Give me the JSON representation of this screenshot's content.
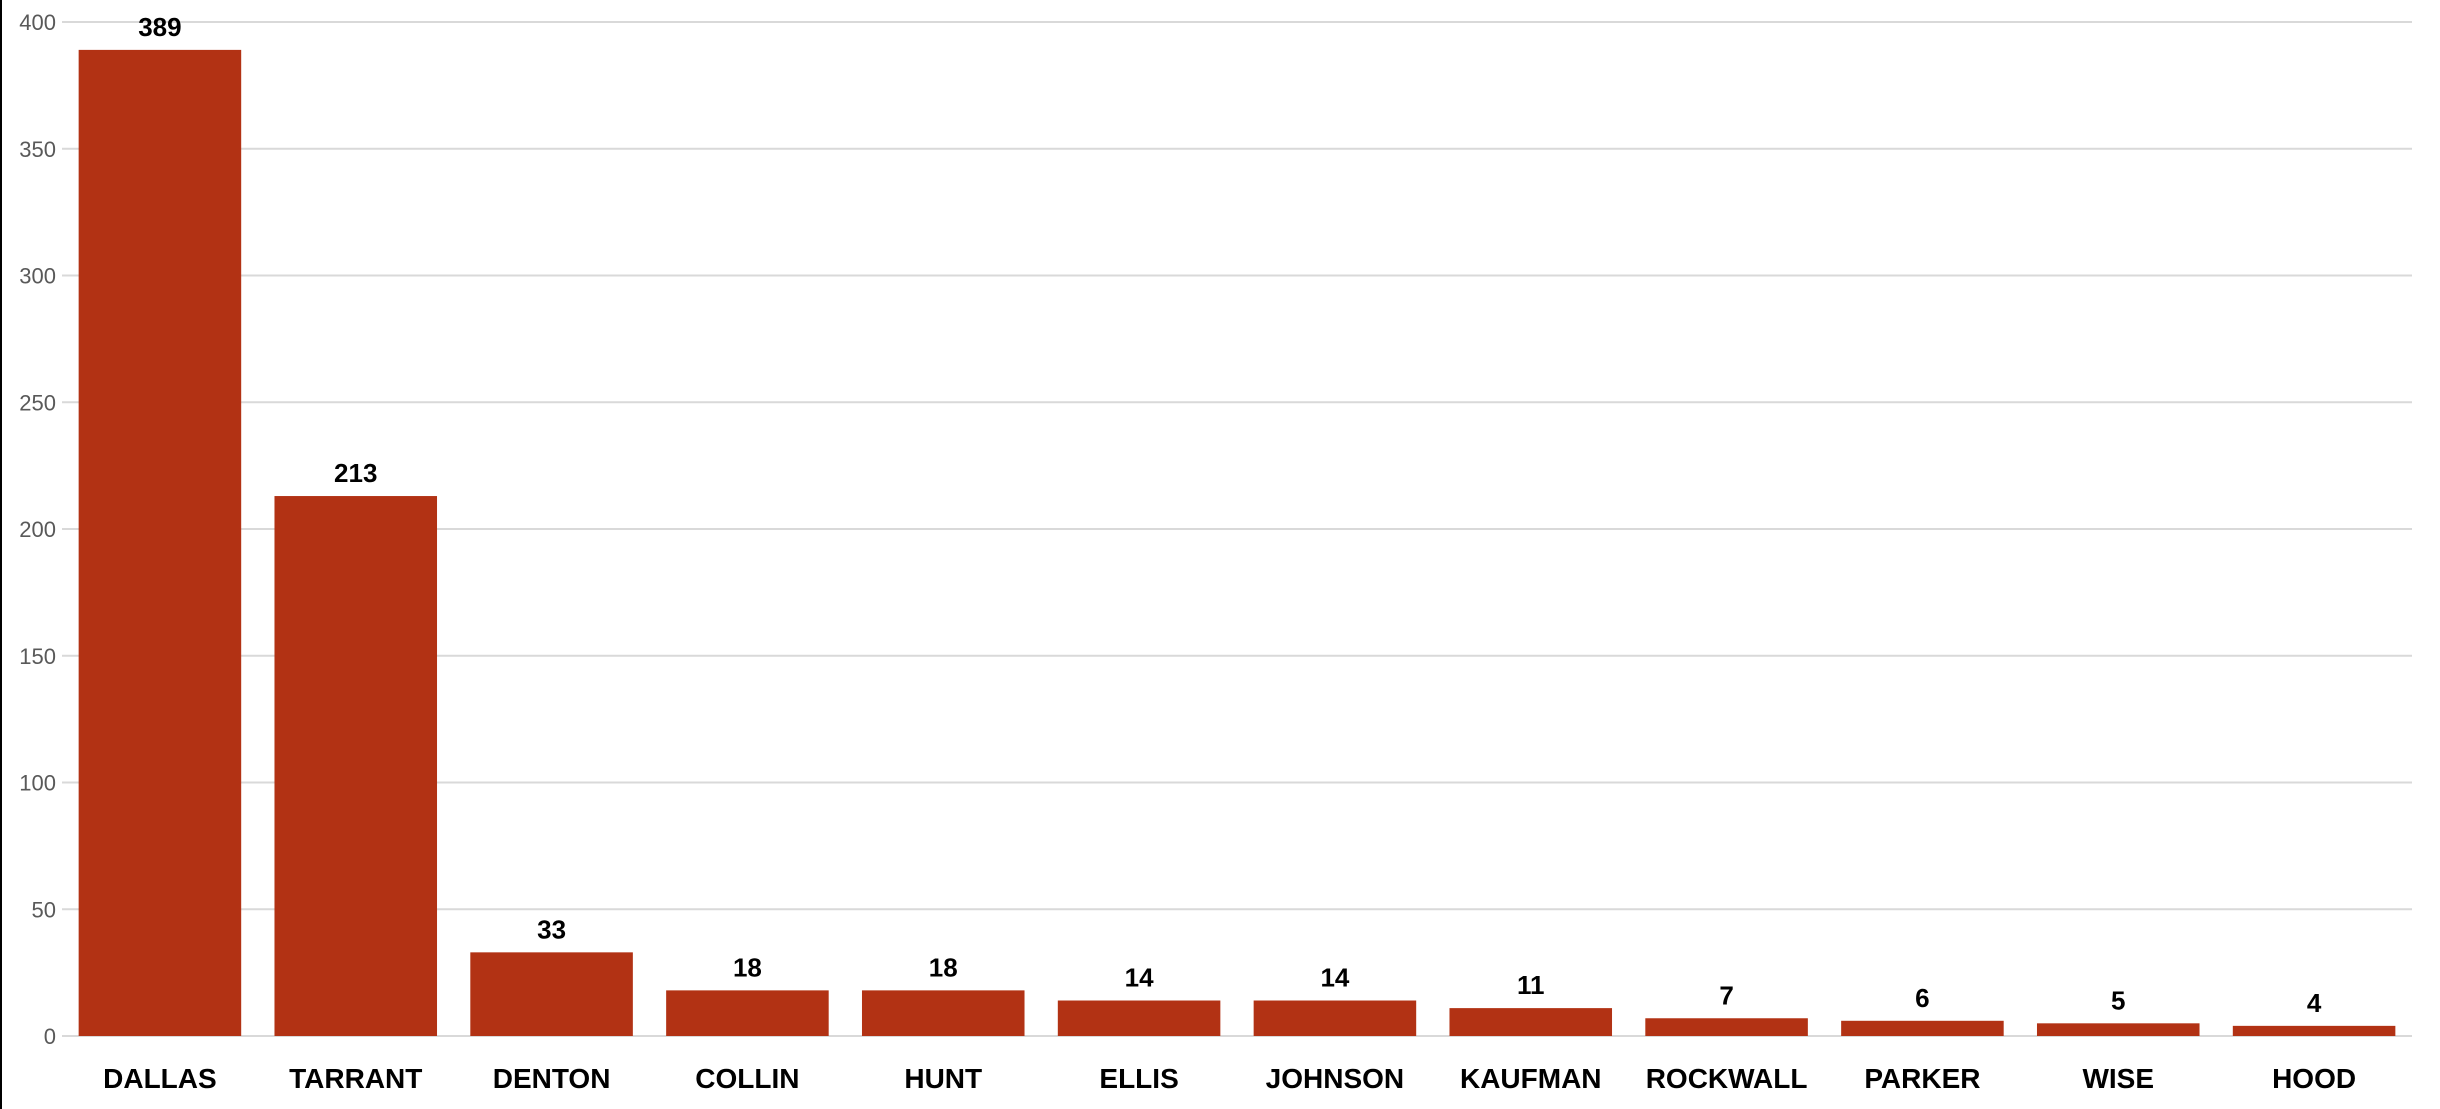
{
  "chart_data": {
    "type": "bar",
    "title": "",
    "xlabel": "",
    "ylabel": "",
    "categories": [
      "DALLAS",
      "TARRANT",
      "DENTON",
      "COLLIN",
      "HUNT",
      "ELLIS",
      "JOHNSON",
      "KAUFMAN",
      "ROCKWALL",
      "PARKER",
      "WISE",
      "HOOD"
    ],
    "values": [
      389,
      213,
      33,
      18,
      18,
      14,
      14,
      11,
      7,
      6,
      5,
      4
    ],
    "ylim": [
      0,
      400
    ],
    "yticks": [
      0,
      50,
      100,
      150,
      200,
      250,
      300,
      350,
      400
    ],
    "grid": true,
    "legend": "none",
    "data_labels": true,
    "colors": {
      "bar": "#B23214",
      "grid": "#D9D9D9",
      "tick_text": "#595959",
      "label_text": "#000000"
    }
  }
}
